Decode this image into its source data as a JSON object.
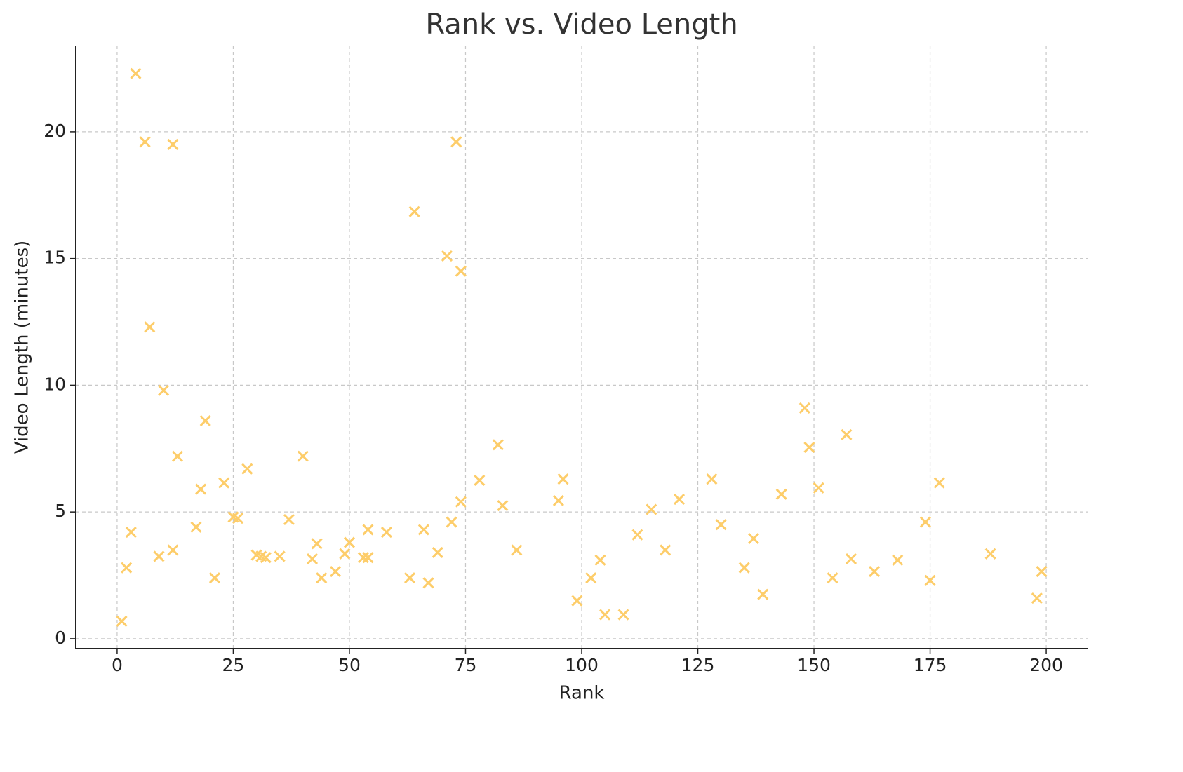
{
  "chart_data": {
    "type": "scatter",
    "title": "Rank vs. Video Length",
    "x_label": "Rank",
    "y_label": "Video Length (minutes)",
    "color": "#fdcd6a",
    "marker": "x",
    "grid": true,
    "xlim": [
      -8.9,
      208.9
    ],
    "ylim": [
      -0.39,
      23.4
    ],
    "xticks": [
      0,
      25,
      50,
      75,
      100,
      125,
      150,
      175,
      200
    ],
    "yticks": [
      0,
      5,
      10,
      15,
      20
    ],
    "x": [
      1,
      2,
      3,
      4,
      6,
      7,
      9,
      10,
      12,
      12,
      13,
      17,
      18,
      19,
      21,
      23,
      25,
      26,
      28,
      30,
      31,
      32,
      35,
      37,
      40,
      42,
      43,
      44,
      47,
      49,
      50,
      53,
      54,
      54,
      58,
      63,
      64,
      66,
      67,
      69,
      71,
      72,
      73,
      74,
      74,
      78,
      82,
      83,
      86,
      95,
      96,
      99,
      102,
      104,
      105,
      109,
      112,
      115,
      118,
      121,
      128,
      130,
      135,
      137,
      139,
      143,
      148,
      149,
      151,
      154,
      157,
      158,
      163,
      168,
      174,
      175,
      177,
      188,
      198,
      199
    ],
    "values": [
      0.69,
      2.8,
      4.2,
      22.3,
      19.6,
      12.3,
      3.25,
      9.8,
      19.5,
      3.5,
      7.2,
      4.4,
      5.9,
      8.6,
      2.4,
      6.15,
      4.8,
      4.75,
      6.7,
      3.3,
      3.25,
      3.2,
      3.25,
      4.7,
      7.2,
      3.15,
      3.75,
      2.4,
      2.65,
      3.35,
      3.8,
      3.2,
      3.2,
      4.3,
      4.2,
      2.4,
      16.85,
      4.3,
      2.2,
      3.4,
      15.1,
      4.6,
      19.6,
      14.5,
      5.4,
      6.25,
      7.65,
      5.25,
      3.5,
      5.45,
      6.3,
      1.5,
      2.4,
      3.1,
      0.95,
      0.95,
      4.1,
      5.1,
      3.5,
      5.5,
      6.3,
      4.5,
      2.8,
      3.95,
      1.75,
      5.7,
      9.1,
      7.55,
      5.95,
      2.4,
      8.05,
      3.15,
      2.65,
      3.1,
      4.6,
      2.3,
      6.15,
      3.35,
      1.6,
      2.65
    ]
  }
}
